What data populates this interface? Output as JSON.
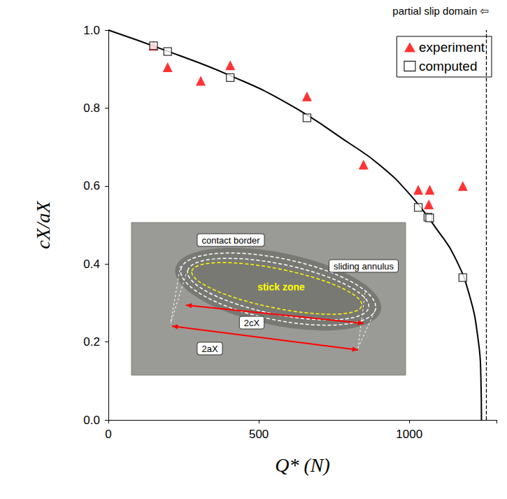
{
  "chart_data": {
    "type": "scatter",
    "x_label": "Q* (N)",
    "y_label": "cX/aX",
    "xlim": [
      0,
      1290
    ],
    "xticks": [
      0,
      500,
      1000
    ],
    "ylim": [
      0,
      1
    ],
    "yticks": [
      {
        "value": 0,
        "label": "0.0"
      },
      0.2,
      0.4,
      0.6,
      0.8,
      {
        "value": 1,
        "label": "1.0"
      }
    ],
    "grid": false,
    "legend": "upper right",
    "series": [
      {
        "name": "experiment",
        "type": "scatter",
        "color": "#ff0000",
        "marker": "triangle",
        "x": [
          150,
          197,
          307,
          405,
          660,
          848,
          1030,
          1065,
          1068,
          1178
        ],
        "values": [
          0.96,
          0.905,
          0.87,
          0.91,
          0.83,
          0.655,
          0.59,
          0.553,
          0.59,
          0.6
        ]
      },
      {
        "name": "computed",
        "type": "scatter",
        "color": "#000000",
        "marker": "square",
        "x": [
          150,
          197,
          405,
          660,
          1030,
          1062,
          1068,
          1178
        ],
        "values": [
          0.96,
          0.945,
          0.878,
          0.775,
          0.545,
          0.52,
          0.518,
          0.365
        ]
      },
      {
        "type": "line",
        "color": "#000000",
        "line_style": "solid",
        "x": [
          0,
          200,
          400,
          600,
          800,
          900,
          1000,
          1100,
          1150,
          1200,
          1230,
          1238,
          1240
        ],
        "values": [
          1.0,
          0.945,
          0.885,
          0.81,
          0.71,
          0.655,
          0.58,
          0.48,
          0.42,
          0.32,
          0.2,
          0.11,
          0.0
        ]
      }
    ],
    "reference_lines": [
      {
        "x": 1255,
        "line_style": "dashed",
        "color": "#000000"
      }
    ],
    "annotations": [
      {
        "text": "partial slip domain ⇦",
        "x": 1255
      }
    ],
    "inset": {
      "labels": {
        "contact border": "contact border",
        "sliding annulus": "sliding annulus",
        "stick zone": "stick zone"
      },
      "dimensions": [
        "2cX",
        "2aX"
      ]
    }
  }
}
